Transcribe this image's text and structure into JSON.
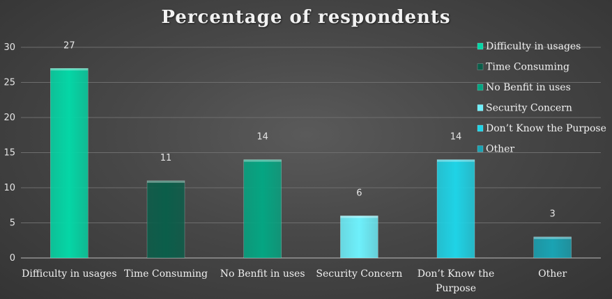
{
  "chart_data": {
    "type": "bar",
    "title": "Percentage of respondents",
    "categories": [
      "Difficulty in usages",
      "Time Consuming",
      "No Benfit in uses",
      "Security Concern",
      "Don’t Know the Purpose",
      "Other"
    ],
    "category_lines": [
      [
        "Difficulty in usages"
      ],
      [
        "Time Consuming"
      ],
      [
        "No Benfit in uses"
      ],
      [
        "Security Concern"
      ],
      [
        "Don’t Know the",
        "Purpose"
      ],
      [
        "Other"
      ]
    ],
    "values": [
      27,
      11,
      14,
      6,
      14,
      3
    ],
    "colors": [
      "#05d6a6",
      "#0b5e4a",
      "#05a582",
      "#6ef0fb",
      "#1fd3e6",
      "#1aa3b3"
    ],
    "legend": [
      "Difficulty in usages",
      "Time Consuming",
      "No Benfit in uses",
      "Security Concern",
      "Don’t Know the  Purpose",
      "Other"
    ],
    "legend_position": "top-right",
    "ylim": [
      0,
      30
    ],
    "yticks": [
      0,
      5,
      10,
      15,
      20,
      25,
      30
    ],
    "xlabel": "",
    "ylabel": "",
    "grid": true
  }
}
